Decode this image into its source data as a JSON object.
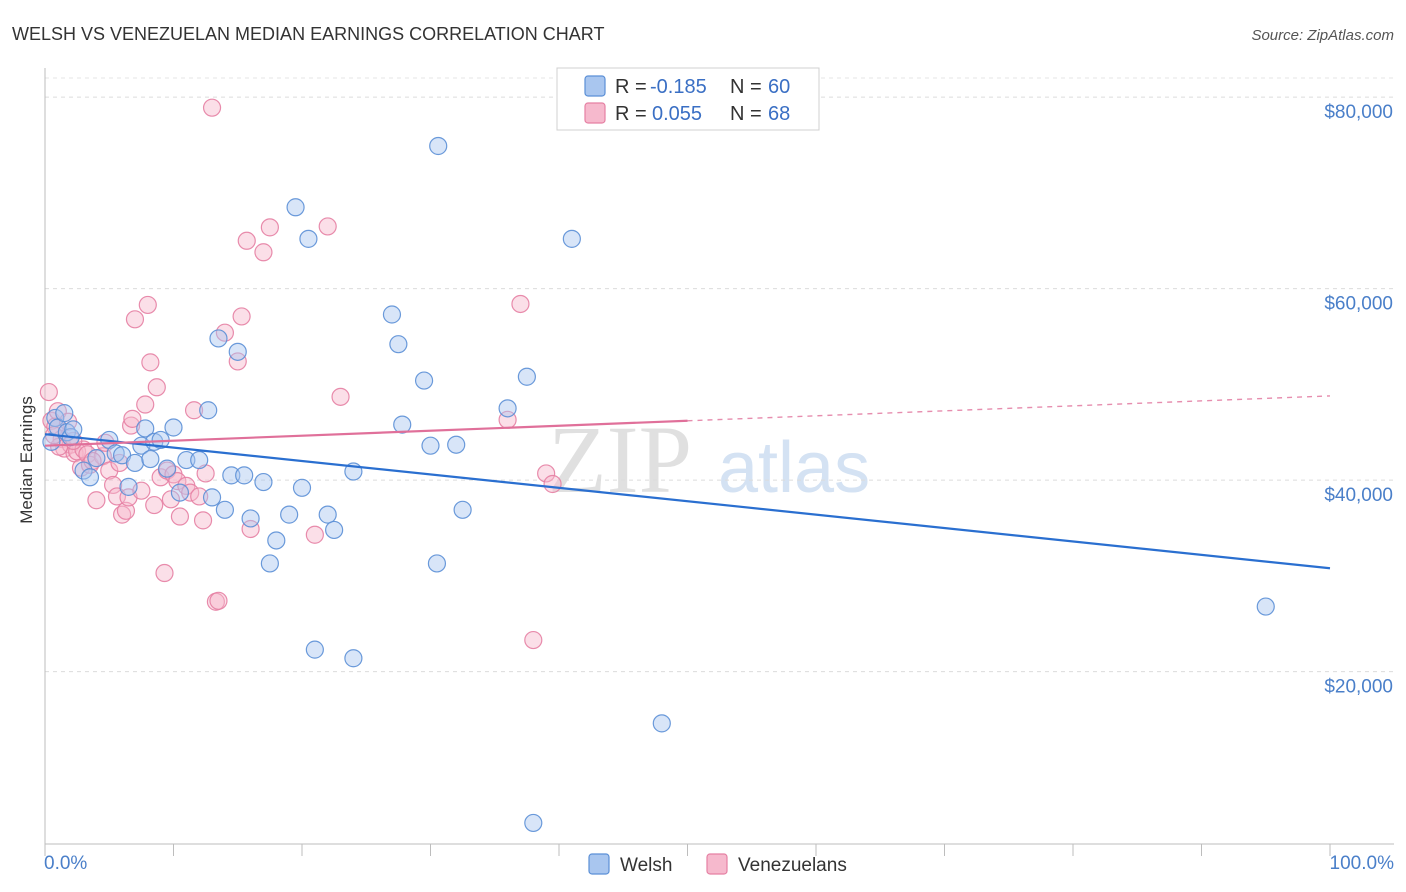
{
  "chart_data": {
    "type": "scatter",
    "title": "WELSH VS VENEZUELAN MEDIAN EARNINGS CORRELATION CHART",
    "source": "Source: ZipAtlas.com",
    "xlabel": "",
    "ylabel": "Median Earnings",
    "xlim": [
      0,
      100
    ],
    "ylim": [
      2000,
      82000
    ],
    "x_tick_labels": {
      "left": "0.0%",
      "right": "100.0%"
    },
    "y_ticks": [
      {
        "value": 20000,
        "label": "$20,000"
      },
      {
        "value": 40000,
        "label": "$40,000"
      },
      {
        "value": 60000,
        "label": "$60,000"
      },
      {
        "value": 80000,
        "label": "$80,000"
      }
    ],
    "grid": true,
    "legend_top": [
      {
        "series": "Welsh",
        "r_label": "R =",
        "r_value": "-0.185",
        "n_label": "N =",
        "n_value": "60"
      },
      {
        "series": "Venezuelans",
        "r_label": "R =",
        "r_value": "0.055",
        "n_label": "N =",
        "n_value": "68"
      }
    ],
    "watermark": {
      "zip": "ZIP",
      "atlas": "atlas"
    },
    "colors": {
      "welsh_fill": "#a9c6ef",
      "welsh_stroke": "#5b8fd6",
      "welsh_line": "#2a6fd0",
      "venez_fill": "#f6b9cd",
      "venez_stroke": "#e580a3",
      "venez_line": "#e0709a"
    },
    "series": [
      {
        "name": "Welsh",
        "trend": {
          "x0": 0,
          "y0": 44800,
          "x1": 100,
          "y1": 30800,
          "solid_to": 100
        },
        "points": [
          [
            0.5,
            44000
          ],
          [
            0.8,
            46500
          ],
          [
            1.0,
            45500
          ],
          [
            1.5,
            47000
          ],
          [
            1.7,
            45000
          ],
          [
            2.0,
            44500
          ],
          [
            2.2,
            45300
          ],
          [
            3.0,
            41000
          ],
          [
            3.5,
            40300
          ],
          [
            4.0,
            42300
          ],
          [
            5.0,
            44200
          ],
          [
            5.5,
            42800
          ],
          [
            6.0,
            42600
          ],
          [
            6.5,
            39300
          ],
          [
            7.0,
            41800
          ],
          [
            7.5,
            43600
          ],
          [
            7.8,
            45400
          ],
          [
            8.2,
            42200
          ],
          [
            8.5,
            44000
          ],
          [
            9.0,
            44200
          ],
          [
            9.5,
            41200
          ],
          [
            10.0,
            45500
          ],
          [
            10.5,
            38700
          ],
          [
            11.0,
            42100
          ],
          [
            12.0,
            42100
          ],
          [
            12.7,
            47300
          ],
          [
            13.0,
            38200
          ],
          [
            13.5,
            54800
          ],
          [
            14.0,
            36900
          ],
          [
            14.5,
            40500
          ],
          [
            15.0,
            53400
          ],
          [
            15.5,
            40500
          ],
          [
            16.0,
            36000
          ],
          [
            17.0,
            39800
          ],
          [
            17.5,
            31300
          ],
          [
            18.0,
            33700
          ],
          [
            19.0,
            36400
          ],
          [
            19.5,
            68500
          ],
          [
            20.0,
            39200
          ],
          [
            20.5,
            65200
          ],
          [
            21.0,
            22300
          ],
          [
            22.0,
            36400
          ],
          [
            22.5,
            34800
          ],
          [
            24.0,
            40900
          ],
          [
            24.0,
            21400
          ],
          [
            27.0,
            57300
          ],
          [
            27.5,
            54200
          ],
          [
            27.8,
            45800
          ],
          [
            29.5,
            50400
          ],
          [
            30.0,
            43600
          ],
          [
            30.5,
            31300
          ],
          [
            30.6,
            74900
          ],
          [
            32.0,
            43700
          ],
          [
            32.5,
            36900
          ],
          [
            36.0,
            47500
          ],
          [
            37.5,
            50800
          ],
          [
            38.0,
            4200
          ],
          [
            41.0,
            65200
          ],
          [
            48.0,
            14600
          ],
          [
            95.0,
            26800
          ]
        ]
      },
      {
        "name": "Venezuelans",
        "trend": {
          "x0": 0,
          "y0": 43600,
          "x1": 100,
          "y1": 48800,
          "solid_to": 50
        },
        "points": [
          [
            0.3,
            49200
          ],
          [
            0.5,
            46200
          ],
          [
            0.8,
            45600
          ],
          [
            1.0,
            47200
          ],
          [
            1.3,
            44300
          ],
          [
            1.5,
            43300
          ],
          [
            1.8,
            46100
          ],
          [
            2.0,
            43700
          ],
          [
            2.3,
            42800
          ],
          [
            2.5,
            43000
          ],
          [
            2.8,
            41300
          ],
          [
            3.0,
            43200
          ],
          [
            3.3,
            42700
          ],
          [
            3.5,
            41600
          ],
          [
            4.0,
            37900
          ],
          [
            4.5,
            42500
          ],
          [
            5.0,
            41000
          ],
          [
            5.3,
            39500
          ],
          [
            5.6,
            38300
          ],
          [
            6.0,
            36400
          ],
          [
            6.3,
            36800
          ],
          [
            6.5,
            38200
          ],
          [
            6.7,
            45700
          ],
          [
            6.8,
            46400
          ],
          [
            7.0,
            56800
          ],
          [
            7.5,
            38900
          ],
          [
            7.8,
            47900
          ],
          [
            8.0,
            58300
          ],
          [
            8.2,
            52300
          ],
          [
            8.5,
            37400
          ],
          [
            8.7,
            49700
          ],
          [
            9.0,
            40300
          ],
          [
            9.3,
            30300
          ],
          [
            9.5,
            41000
          ],
          [
            10.0,
            40600
          ],
          [
            10.3,
            39900
          ],
          [
            10.5,
            36200
          ],
          [
            11.0,
            39400
          ],
          [
            11.3,
            38700
          ],
          [
            11.6,
            47300
          ],
          [
            12.0,
            38300
          ],
          [
            12.3,
            35800
          ],
          [
            12.5,
            40700
          ],
          [
            13.0,
            78900
          ],
          [
            13.3,
            27300
          ],
          [
            13.5,
            27400
          ],
          [
            14.0,
            55400
          ],
          [
            15.0,
            52400
          ],
          [
            15.3,
            57100
          ],
          [
            15.7,
            65000
          ],
          [
            16.0,
            34900
          ],
          [
            17.0,
            63800
          ],
          [
            17.5,
            66400
          ],
          [
            21.0,
            34300
          ],
          [
            22.0,
            66500
          ],
          [
            23.0,
            48700
          ],
          [
            36.0,
            46300
          ],
          [
            37.0,
            58400
          ],
          [
            38.0,
            23300
          ],
          [
            39.0,
            40700
          ],
          [
            39.5,
            39600
          ],
          [
            2.2,
            44100
          ],
          [
            3.7,
            42000
          ],
          [
            4.7,
            43900
          ],
          [
            1.1,
            43500
          ],
          [
            0.7,
            44700
          ],
          [
            5.8,
            41800
          ],
          [
            9.8,
            38000
          ]
        ]
      }
    ]
  }
}
